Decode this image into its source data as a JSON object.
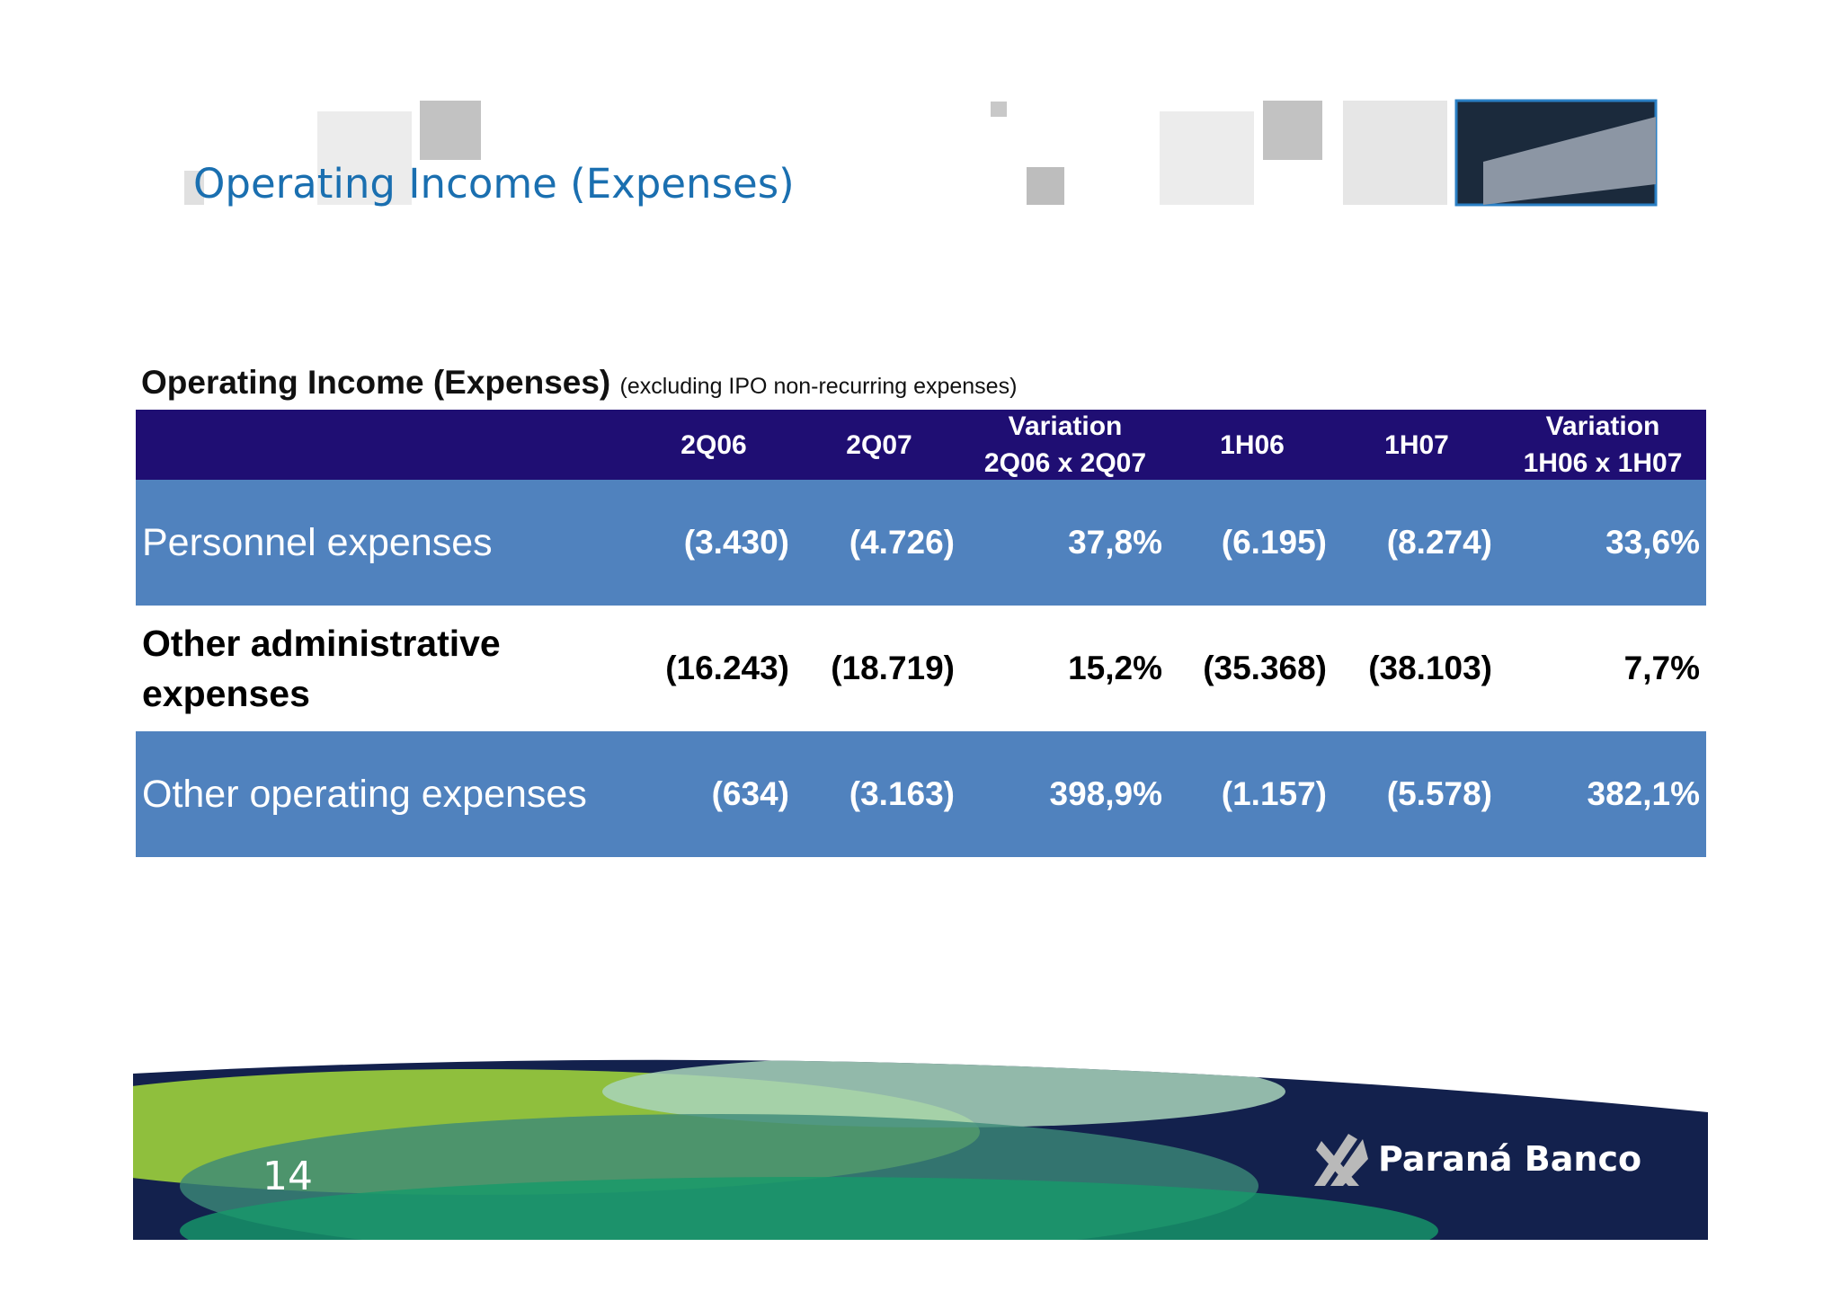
{
  "header": {
    "title": "Operating Income (Expenses)"
  },
  "table": {
    "title": "Operating Income (Expenses)",
    "subtitle": "(excluding IPO non-recurring expenses)",
    "columns": [
      [
        "2Q06"
      ],
      [
        "2Q07"
      ],
      [
        "Variation",
        "2Q06 x 2Q07"
      ],
      [
        "1H06"
      ],
      [
        "1H07"
      ],
      [
        "Variation",
        "1H06 x 1H07"
      ]
    ],
    "rows": [
      [
        "Personnel expenses",
        "(3.430)",
        "(4.726)",
        "37,8%",
        "(6.195)",
        "(8.274)",
        "33,6%"
      ],
      [
        "Other administrative expenses",
        "(16.243)",
        "(18.719)",
        "15,2%",
        "(35.368)",
        "(38.103)",
        "7,7%"
      ],
      [
        "Other operating expenses",
        "(634)",
        "(3.163)",
        "398,9%",
        "(1.157)",
        "(5.578)",
        "382,1%"
      ]
    ]
  },
  "footer": {
    "page_number": "14",
    "logo": "Paraná Banco"
  }
}
